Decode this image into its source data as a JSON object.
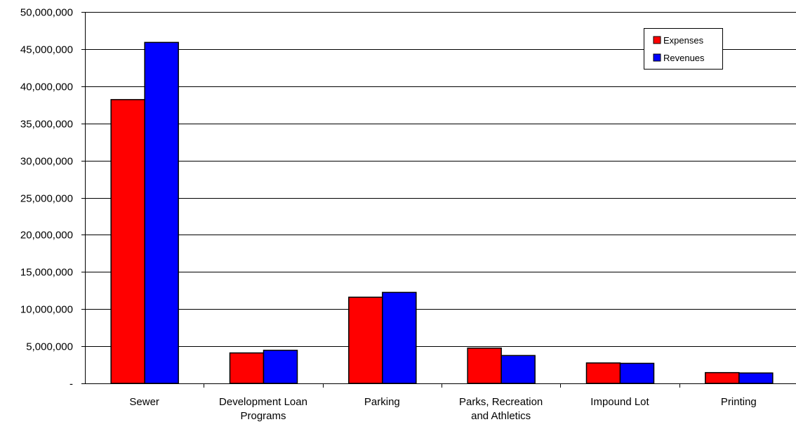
{
  "chart_data": {
    "type": "bar",
    "categories": [
      [
        "Sewer"
      ],
      [
        "Development Loan",
        "Programs"
      ],
      [
        "Parking"
      ],
      [
        "Parks, Recreation",
        "and Athletics"
      ],
      [
        "Impound Lot"
      ],
      [
        "Printing"
      ]
    ],
    "series": [
      {
        "name": "Expenses",
        "color": "#ff0000",
        "values": [
          38200000,
          4100000,
          11600000,
          4750000,
          2750000,
          1450000
        ]
      },
      {
        "name": "Revenues",
        "color": "#0000ff",
        "values": [
          45900000,
          4450000,
          12250000,
          3750000,
          2700000,
          1400000
        ]
      }
    ],
    "ylim": [
      0,
      50000000
    ],
    "yticks": [
      0,
      5000000,
      10000000,
      15000000,
      20000000,
      25000000,
      30000000,
      35000000,
      40000000,
      45000000,
      50000000
    ],
    "ytick_labels": [
      "-",
      "5,000,000",
      "10,000,000",
      "15,000,000",
      "20,000,000",
      "25,000,000",
      "30,000,000",
      "35,000,000",
      "40,000,000",
      "45,000,000",
      "50,000,000"
    ],
    "grid": true,
    "legend_position": "top-right",
    "title": "",
    "xlabel": "",
    "ylabel": ""
  }
}
